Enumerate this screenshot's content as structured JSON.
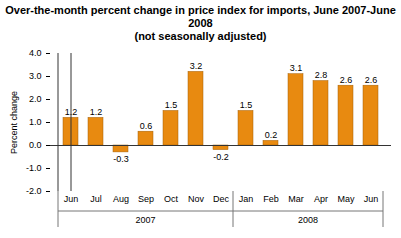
{
  "chart_data": {
    "type": "bar",
    "title": "Over-the-month percent change in price index for imports, June 2007-June 2008",
    "subtitle": "(not seasonally adjusted)",
    "y_label": "Percent change",
    "categories": [
      "Jun",
      "Jul",
      "Aug",
      "Sep",
      "Oct",
      "Nov",
      "Dec",
      "Jan",
      "Feb",
      "Mar",
      "Apr",
      "May",
      "Jun"
    ],
    "groups": [
      "2007",
      "2007",
      "2007",
      "2007",
      "2007",
      "2007",
      "2007",
      "2008",
      "2008",
      "2008",
      "2008",
      "2008",
      "2008"
    ],
    "values": [
      1.2,
      1.2,
      -0.3,
      0.6,
      1.5,
      3.2,
      -0.2,
      1.5,
      0.2,
      3.1,
      2.8,
      2.6,
      2.6
    ],
    "color": "#e88a10",
    "ylim": [
      -2,
      4
    ],
    "yticks": [
      {
        "value": -2,
        "label": "-2.0"
      },
      {
        "value": -1,
        "label": "-1.0"
      },
      {
        "value": 0,
        "label": "0.0"
      },
      {
        "value": 1,
        "label": "1.0"
      },
      {
        "value": 2,
        "label": "2.0"
      },
      {
        "value": 3,
        "label": "3.0"
      },
      {
        "value": 4,
        "label": "4.0"
      }
    ],
    "grid": false,
    "data_labels": true
  }
}
